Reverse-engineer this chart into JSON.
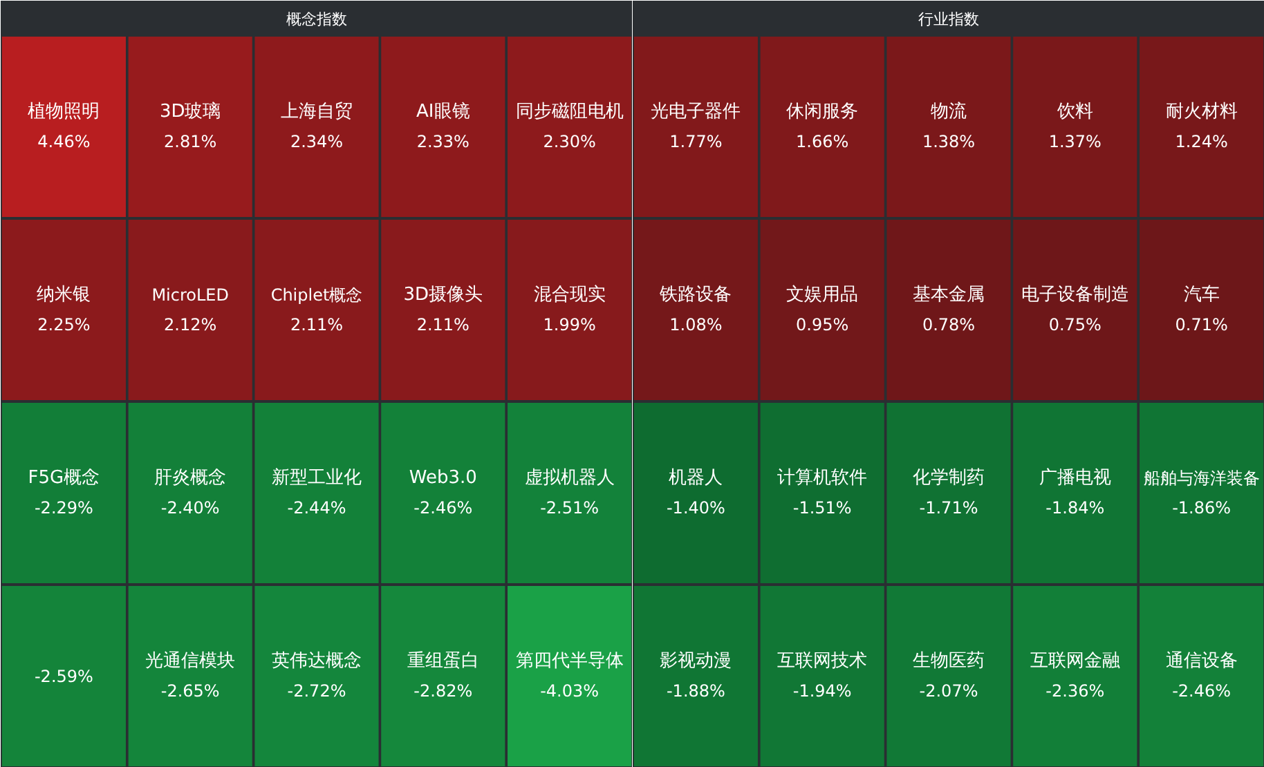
{
  "chart_data": [
    {
      "type": "other",
      "title": "概念指数",
      "categories": [
        "植物照明",
        "3D玻璃",
        "上海自贸",
        "AI眼镜",
        "同步磁阻电机",
        "纳米银",
        "MicroLED",
        "Chiplet概念",
        "3D摄像头",
        "混合现实",
        "F5G概念",
        "肝炎概念",
        "新型工业化",
        "Web3.0",
        "虚拟机器人",
        null,
        "光通信模块",
        "英伟达概念",
        "重组蛋白",
        "第四代半导体"
      ],
      "values": [
        4.46,
        2.81,
        2.34,
        2.33,
        2.3,
        2.25,
        2.12,
        2.11,
        2.11,
        1.99,
        -2.29,
        -2.4,
        -2.44,
        -2.46,
        -2.51,
        -2.59,
        -2.65,
        -2.72,
        -2.82,
        -4.03
      ],
      "value_labels": [
        "4.46%",
        "2.81%",
        "2.34%",
        "2.33%",
        "2.30%",
        "2.25%",
        "2.12%",
        "2.11%",
        "2.11%",
        "1.99%",
        "-2.29%",
        "-2.40%",
        "-2.44%",
        "-2.46%",
        "-2.51%",
        "-2.59%",
        "-2.65%",
        "-2.72%",
        "-2.82%",
        "-4.03%"
      ]
    },
    {
      "type": "other",
      "title": "行业指数",
      "categories": [
        "光电子器件",
        "休闲服务",
        "物流",
        "饮料",
        "耐火材料",
        "铁路设备",
        "文娱用品",
        "基本金属",
        "电子设备制造",
        "汽车",
        "机器人",
        "计算机软件",
        "化学制药",
        "广播电视",
        "船舶与海洋装备",
        "影视动漫",
        "互联网技术",
        "生物医药",
        "互联网金融",
        "通信设备"
      ],
      "values": [
        1.77,
        1.66,
        1.38,
        1.37,
        1.24,
        1.08,
        0.95,
        0.78,
        0.75,
        0.71,
        -1.4,
        -1.51,
        -1.71,
        -1.84,
        -1.86,
        -1.88,
        -1.94,
        -2.07,
        -2.36,
        -2.46
      ],
      "value_labels": [
        "1.77%",
        "1.66%",
        "1.38%",
        "1.37%",
        "1.24%",
        "1.08%",
        "0.95%",
        "0.78%",
        "0.75%",
        "0.71%",
        "-1.40%",
        "-1.51%",
        "-1.71%",
        "-1.84%",
        "-1.86%",
        "-1.88%",
        "-1.94%",
        "-2.07%",
        "-2.36%",
        "-2.46%"
      ]
    }
  ]
}
